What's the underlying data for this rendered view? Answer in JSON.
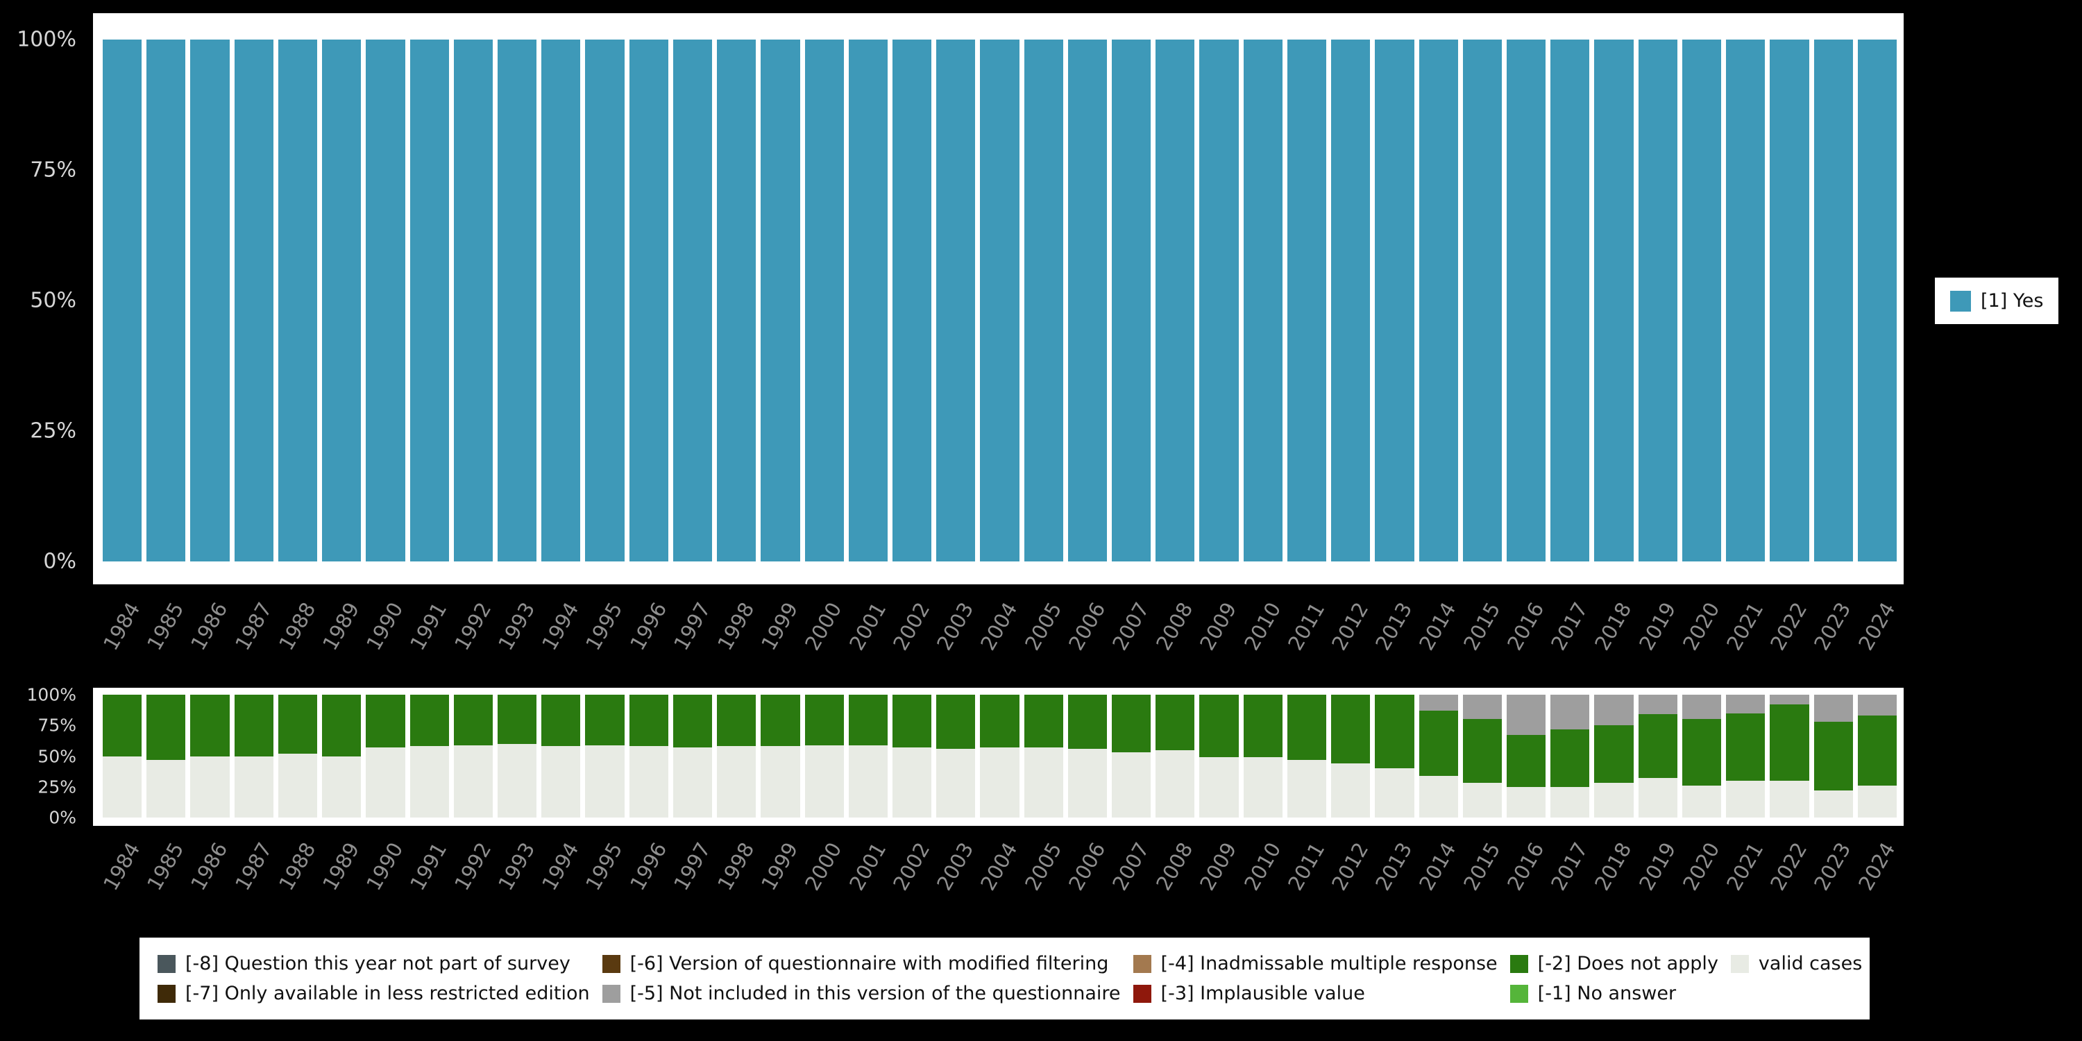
{
  "page": {
    "background": "#000000"
  },
  "chart_data": [
    {
      "type": "bar",
      "variant": "stacked-percent",
      "title": "",
      "xlabel": "",
      "ylabel": "",
      "ylim": [
        0,
        100
      ],
      "grid": false,
      "legend_position": "right",
      "yticks": [
        "0%",
        "25%",
        "50%",
        "75%",
        "100%"
      ],
      "categories": [
        "1984",
        "1985",
        "1986",
        "1987",
        "1988",
        "1989",
        "1990",
        "1991",
        "1992",
        "1993",
        "1994",
        "1995",
        "1996",
        "1997",
        "1998",
        "1999",
        "2000",
        "2001",
        "2002",
        "2003",
        "2004",
        "2005",
        "2006",
        "2007",
        "2008",
        "2009",
        "2010",
        "2011",
        "2012",
        "2013",
        "2014",
        "2015",
        "2016",
        "2017",
        "2018",
        "2019",
        "2020",
        "2021",
        "2022",
        "2023",
        "2024"
      ],
      "series": [
        {
          "name": "[1] Yes",
          "color": "#3e99b8",
          "values": [
            100,
            100,
            100,
            100,
            100,
            100,
            100,
            100,
            100,
            100,
            100,
            100,
            100,
            100,
            100,
            100,
            100,
            100,
            100,
            100,
            100,
            100,
            100,
            100,
            100,
            100,
            100,
            100,
            100,
            100,
            100,
            100,
            100,
            100,
            100,
            100,
            100,
            100,
            100,
            100,
            100
          ]
        }
      ]
    },
    {
      "type": "bar",
      "variant": "stacked-percent",
      "title": "",
      "xlabel": "",
      "ylabel": "",
      "ylim": [
        0,
        100
      ],
      "grid": false,
      "legend_position": "bottom",
      "yticks": [
        "0%",
        "25%",
        "50%",
        "75%",
        "100%"
      ],
      "categories": [
        "1984",
        "1985",
        "1986",
        "1987",
        "1988",
        "1989",
        "1990",
        "1991",
        "1992",
        "1993",
        "1994",
        "1995",
        "1996",
        "1997",
        "1998",
        "1999",
        "2000",
        "2001",
        "2002",
        "2003",
        "2004",
        "2005",
        "2006",
        "2007",
        "2008",
        "2009",
        "2010",
        "2011",
        "2012",
        "2013",
        "2014",
        "2015",
        "2016",
        "2017",
        "2018",
        "2019",
        "2020",
        "2021",
        "2022",
        "2023",
        "2024"
      ],
      "series": [
        {
          "name": "valid cases",
          "color": "#e8ebe4",
          "values": [
            50,
            47,
            50,
            50,
            52,
            50,
            57,
            58,
            59,
            60,
            58,
            59,
            58,
            57,
            58,
            58,
            59,
            59,
            57,
            56,
            57,
            57,
            56,
            53,
            55,
            49,
            49,
            47,
            44,
            40,
            34,
            28,
            25,
            25,
            28,
            32,
            26,
            30,
            30,
            22,
            26
          ]
        },
        {
          "name": "[-2] Does not apply",
          "color": "#2a7a10",
          "values": [
            50,
            53,
            50,
            50,
            48,
            50,
            43,
            42,
            41,
            40,
            42,
            41,
            42,
            43,
            42,
            42,
            41,
            41,
            43,
            44,
            43,
            43,
            44,
            47,
            45,
            51,
            51,
            53,
            56,
            60,
            53,
            52,
            42,
            47,
            47,
            52,
            54,
            55,
            62,
            56,
            57
          ]
        },
        {
          "name": "[-5] Not included in this version of the questionnaire",
          "color": "#9e9e9e",
          "values": [
            0,
            0,
            0,
            0,
            0,
            0,
            0,
            0,
            0,
            0,
            0,
            0,
            0,
            0,
            0,
            0,
            0,
            0,
            0,
            0,
            0,
            0,
            0,
            0,
            0,
            0,
            0,
            0,
            0,
            0,
            13,
            20,
            33,
            28,
            25,
            16,
            20,
            15,
            8,
            22,
            17
          ]
        }
      ]
    }
  ],
  "legend_right": {
    "items": [
      {
        "label": "[1] Yes",
        "color": "#3e99b8"
      }
    ]
  },
  "legend_bottom": {
    "items": [
      {
        "label": "[-8] Question this year not part of survey",
        "color": "#4a575c"
      },
      {
        "label": "[-7] Only available in less restricted edition",
        "color": "#3f2a08"
      },
      {
        "label": "[-6] Version of questionnaire with modified filtering",
        "color": "#5a3a10"
      },
      {
        "label": "[-5] Not included in this version of the questionnaire",
        "color": "#9e9e9e"
      },
      {
        "label": "[-4] Inadmissable multiple response",
        "color": "#a3794f"
      },
      {
        "label": "[-3] Implausible value",
        "color": "#8f180c"
      },
      {
        "label": "[-2] Does not apply",
        "color": "#2a7a10"
      },
      {
        "label": "[-1] No answer",
        "color": "#55b53a"
      },
      {
        "label": "valid cases",
        "color": "#e8ebe4"
      }
    ]
  }
}
